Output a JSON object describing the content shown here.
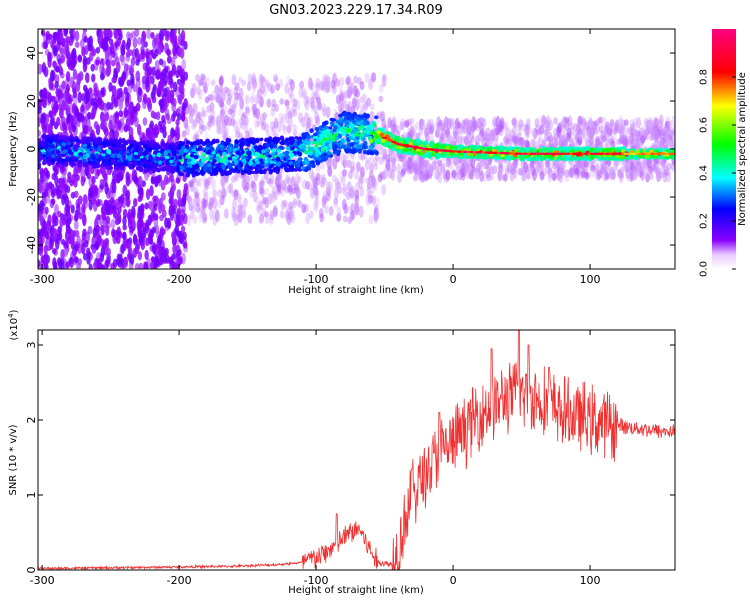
{
  "chart_data": [
    {
      "type": "heatmap",
      "title": "GN03.2023.229.17.34.R09",
      "xlabel": "Height of straight line (km)",
      "ylabel": "Frequency (Hz)",
      "xlim": [
        -303,
        162
      ],
      "ylim": [
        -50,
        50
      ],
      "xticks": [
        -300,
        -200,
        -100,
        0,
        100
      ],
      "yticks": [
        -40,
        -20,
        0,
        20,
        40
      ],
      "colorbar": {
        "label": "Normalized spectral amplitude",
        "range": [
          0,
          1
        ],
        "ticks": [
          "0.0",
          "0.2",
          "0.4",
          "0.6",
          "0.8"
        ],
        "colors": [
          "#ffffff",
          "#8a00ff",
          "#0000ff",
          "#00ffff",
          "#00ff00",
          "#ffff00",
          "#ff0000",
          "#ff0080"
        ]
      },
      "ridge": {
        "description_points": [
          {
            "x": -300,
            "y": 0
          },
          {
            "x": -200,
            "y": -4
          },
          {
            "x": -150,
            "y": -3
          },
          {
            "x": -110,
            "y": -2
          },
          {
            "x": -80,
            "y": 7
          },
          {
            "x": -55,
            "y": 6
          },
          {
            "x": -40,
            "y": 2
          },
          {
            "x": -20,
            "y": 0
          },
          {
            "x": 0,
            "y": -1
          },
          {
            "x": 50,
            "y": -2
          },
          {
            "x": 162,
            "y": -2
          }
        ]
      }
    },
    {
      "type": "line",
      "title": "",
      "xlabel": "Height of straight line (km)",
      "ylabel": "SNR (10 * v/v)",
      "y_multiplier": "(x10^4)",
      "y_multiplier_base": "(x10",
      "y_multiplier_exp": "4",
      "y_multiplier_close": ")",
      "xlim": [
        -303,
        162
      ],
      "ylim": [
        0,
        3.2
      ],
      "xticks": [
        -300,
        -200,
        -100,
        0,
        100
      ],
      "yticks": [
        0,
        1,
        2,
        3
      ],
      "series": [
        {
          "color": "#f03030",
          "envelope": {
            "x": [
              -303,
              -250,
              -200,
              -160,
              -130,
              -110,
              -95,
              -85,
              -75,
              -68,
              -62,
              -55,
              -45,
              -40,
              -35,
              -30,
              -20,
              -10,
              0,
              10,
              20,
              30,
              40,
              50,
              60,
              70,
              80,
              90,
              100,
              110,
              120,
              130,
              140,
              150,
              162
            ],
            "y": [
              0.02,
              0.03,
              0.04,
              0.05,
              0.07,
              0.1,
              0.2,
              0.35,
              0.5,
              0.55,
              0.3,
              0.1,
              0.08,
              0.3,
              0.7,
              1.0,
              1.3,
              1.55,
              1.7,
              1.9,
              2.1,
              2.2,
              2.3,
              2.35,
              2.3,
              2.2,
              2.1,
              2.05,
              2.0,
              1.95,
              1.93,
              1.9,
              1.88,
              1.85,
              1.85
            ]
          },
          "peaks": [
            {
              "x": -85,
              "y": 0.75
            },
            {
              "x": -30,
              "y": 1.35
            },
            {
              "x": -10,
              "y": 2.1
            },
            {
              "x": 28,
              "y": 2.95
            },
            {
              "x": 48,
              "y": 3.2
            },
            {
              "x": 55,
              "y": 3.0
            },
            {
              "x": 70,
              "y": 2.7
            }
          ]
        }
      ]
    }
  ]
}
